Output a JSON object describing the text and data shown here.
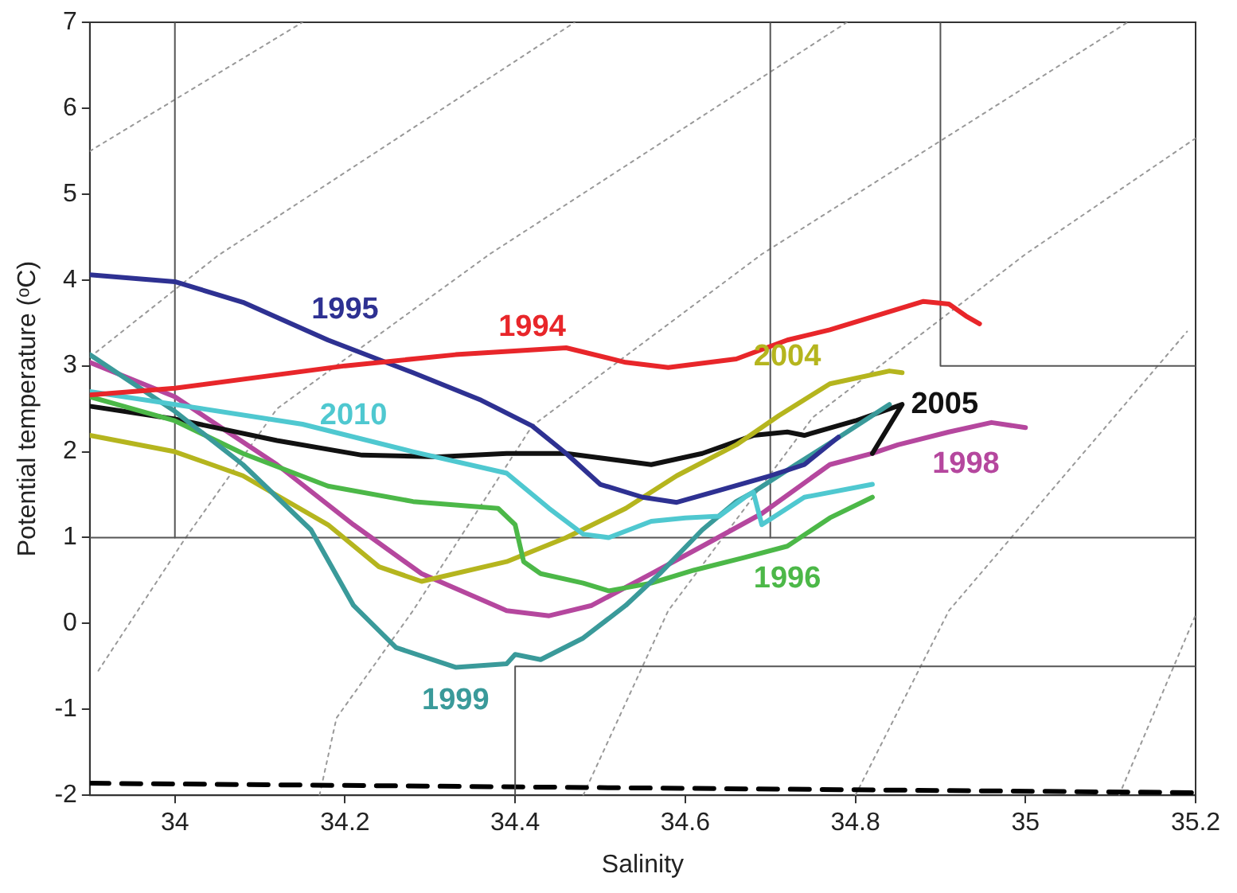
{
  "chart_data": {
    "type": "line",
    "xlabel": "Salinity",
    "ylabel": "Potential temperature (ᵒC)",
    "xlim": [
      33.9,
      35.2
    ],
    "xticks": [
      34,
      34.2,
      34.4,
      34.6,
      34.8,
      35,
      35.2
    ],
    "ylim": [
      -2,
      7
    ],
    "yticks": [
      -2,
      -1,
      0,
      1,
      2,
      3,
      4,
      5,
      6,
      7
    ],
    "legend": false,
    "marker": "none",
    "line_style": "solid",
    "series": [
      {
        "name": "1994",
        "color": "#e8262a",
        "x": [
          33.9,
          34,
          34.2,
          34.33,
          34.46,
          34.53,
          34.58,
          34.66,
          34.72,
          34.77,
          34.88,
          34.91,
          34.93,
          34.946
        ],
        "values": [
          2.66,
          2.74,
          3.0,
          3.13,
          3.21,
          3.04,
          2.98,
          3.08,
          3.3,
          3.42,
          3.75,
          3.72,
          3.58,
          3.49
        ]
      },
      {
        "name": "1995",
        "color": "#2e3192",
        "x": [
          33.9,
          34,
          34.08,
          34.18,
          34.28,
          34.36,
          34.42,
          34.46,
          34.5,
          34.55,
          34.59,
          34.64,
          34.7,
          34.74,
          34.78
        ],
        "values": [
          4.06,
          3.98,
          3.74,
          3.3,
          2.92,
          2.6,
          2.3,
          1.98,
          1.62,
          1.47,
          1.41,
          1.55,
          1.72,
          1.85,
          2.17
        ]
      },
      {
        "name": "2010",
        "color": "#4fc8d0",
        "x": [
          33.9,
          34,
          34.15,
          34.28,
          34.39,
          34.44,
          34.48,
          34.51,
          34.56,
          34.6,
          34.64,
          34.67,
          34.68,
          34.69,
          34.74,
          34.82
        ],
        "values": [
          2.7,
          2.55,
          2.32,
          2.0,
          1.75,
          1.34,
          1.04,
          1.0,
          1.19,
          1.23,
          1.25,
          1.47,
          1.53,
          1.15,
          1.47,
          1.62
        ]
      },
      {
        "name": "1999",
        "color": "#3a9a9a",
        "x": [
          33.9,
          34,
          34.08,
          34.16,
          34.21,
          34.26,
          34.33,
          34.39,
          34.4,
          34.43,
          34.48,
          34.53,
          34.57,
          34.62,
          34.66,
          34.68,
          34.73,
          34.77,
          34.84
        ],
        "values": [
          3.13,
          2.47,
          1.85,
          1.09,
          0.21,
          -0.28,
          -0.51,
          -0.47,
          -0.36,
          -0.42,
          -0.17,
          0.21,
          0.58,
          1.09,
          1.42,
          1.53,
          1.85,
          2.1,
          2.55
        ]
      },
      {
        "name": "1996",
        "color": "#4cb848",
        "x": [
          33.9,
          34,
          34.08,
          34.18,
          34.28,
          34.38,
          34.4,
          34.41,
          34.43,
          34.48,
          34.51,
          34.56,
          34.61,
          34.67,
          34.72,
          34.77,
          34.82
        ],
        "values": [
          2.64,
          2.36,
          1.98,
          1.6,
          1.42,
          1.34,
          1.15,
          0.72,
          0.58,
          0.47,
          0.38,
          0.47,
          0.62,
          0.77,
          0.9,
          1.23,
          1.47
        ]
      },
      {
        "name": "2004",
        "color": "#b5b51e",
        "x": [
          33.9,
          34,
          34.08,
          34.18,
          34.24,
          34.29,
          34.39,
          34.46,
          34.53,
          34.59,
          34.66,
          34.71,
          34.77,
          34.84,
          34.855
        ],
        "values": [
          2.19,
          2.0,
          1.72,
          1.15,
          0.66,
          0.49,
          0.72,
          1.0,
          1.34,
          1.72,
          2.08,
          2.42,
          2.79,
          2.94,
          2.92
        ]
      },
      {
        "name": "2005",
        "color": "#111111",
        "x": [
          33.9,
          34,
          34.12,
          34.22,
          34.31,
          34.39,
          34.46,
          34.56,
          34.62,
          34.68,
          34.72,
          34.74,
          34.8,
          34.855,
          34.82
        ],
        "values": [
          2.53,
          2.38,
          2.13,
          1.96,
          1.94,
          1.98,
          1.98,
          1.85,
          1.98,
          2.19,
          2.23,
          2.19,
          2.36,
          2.55,
          1.98
        ]
      },
      {
        "name": "1998",
        "color": "#b5479e",
        "x": [
          33.9,
          34,
          34.12,
          34.21,
          34.29,
          34.39,
          34.44,
          34.49,
          34.56,
          34.62,
          34.69,
          34.77,
          34.82,
          34.85,
          34.91,
          34.96,
          35.0
        ],
        "values": [
          3.04,
          2.64,
          1.85,
          1.15,
          0.58,
          0.15,
          0.09,
          0.21,
          0.58,
          0.9,
          1.28,
          1.85,
          1.98,
          2.08,
          2.23,
          2.34,
          2.28
        ]
      },
      {
        "color": "#555555",
        "line_style": "solid",
        "x": [
          33.9,
          35.2
        ],
        "values": [
          1,
          1
        ]
      },
      {
        "color": "#555555",
        "line_style": "solid",
        "x": [
          34,
          34
        ],
        "values": [
          1,
          7
        ]
      },
      {
        "color": "#555555",
        "line_style": "solid",
        "x": [
          34.7,
          34.7
        ],
        "values": [
          1,
          7
        ]
      },
      {
        "color": "#555555",
        "line_style": "solid",
        "x": [
          34.9,
          34.9,
          35.2
        ],
        "values": [
          7,
          3,
          3
        ]
      },
      {
        "color": "#555555",
        "line_style": "solid",
        "x": [
          34.4,
          34.4,
          35.2
        ],
        "values": [
          -2,
          -0.5,
          -0.5
        ]
      },
      {
        "color": "#000000",
        "line_style": "dashed",
        "x": [
          33.9,
          35.2
        ],
        "values": [
          -1.86,
          -1.97
        ]
      },
      {
        "color": "#999999",
        "line_style": "dotted",
        "x": [
          33.9,
          34.15
        ],
        "values": [
          5.5,
          7
        ]
      },
      {
        "color": "#999999",
        "line_style": "dotted",
        "x": [
          33.9,
          34.05,
          34.47
        ],
        "values": [
          3.1,
          4.28,
          7
        ]
      },
      {
        "color": "#999999",
        "line_style": "dotted",
        "x": [
          33.91,
          34.01,
          34.12,
          34.37,
          34.79
        ],
        "values": [
          -0.55,
          0.96,
          2.5,
          4.3,
          7
        ]
      },
      {
        "color": "#999999",
        "line_style": "dotted",
        "x": [
          34.17,
          34.19,
          34.28,
          34.42,
          34.69,
          35.12
        ],
        "values": [
          -2,
          -1.1,
          0.15,
          2.3,
          4.3,
          7
        ]
      },
      {
        "color": "#999999",
        "line_style": "dotted",
        "x": [
          34.48,
          34.58,
          34.75,
          35.0,
          35.2
        ],
        "values": [
          -2,
          0.15,
          2.4,
          4.3,
          5.65
        ]
      },
      {
        "color": "#999999",
        "line_style": "dotted",
        "x": [
          34.8,
          34.91,
          35.19
        ],
        "values": [
          -2,
          0.15,
          3.4
        ]
      },
      {
        "color": "#999999",
        "line_style": "dotted",
        "x": [
          35.11,
          35.2
        ],
        "values": [
          -2,
          0.1
        ]
      }
    ]
  }
}
